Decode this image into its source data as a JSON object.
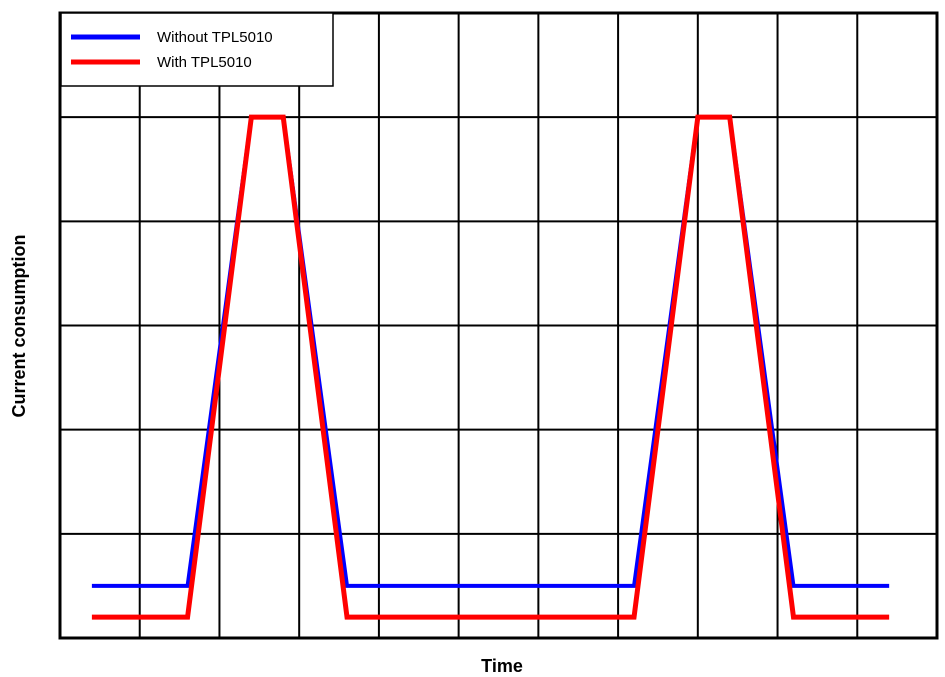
{
  "chart_data": {
    "type": "line",
    "xlabel": "Time",
    "ylabel": "Current consumption",
    "grid": true,
    "legend_placement": "top-left",
    "xlim": [
      0,
      11
    ],
    "ylim": [
      0,
      6
    ],
    "series": [
      {
        "name": "Without TPL5010",
        "color": "#0000ff",
        "x": [
          0.4,
          1.6,
          2.4,
          2.8,
          3.6,
          7.2,
          8.0,
          8.4,
          9.2,
          10.4
        ],
        "y": [
          0.5,
          0.5,
          5.0,
          5.0,
          0.5,
          0.5,
          5.0,
          5.0,
          0.5,
          0.5
        ]
      },
      {
        "name": "With TPL5010",
        "color": "#ff0000",
        "x": [
          0.4,
          1.6,
          2.4,
          2.8,
          3.6,
          7.2,
          8.0,
          8.4,
          9.2,
          10.4
        ],
        "y": [
          0.2,
          0.2,
          5.0,
          5.0,
          0.2,
          0.2,
          5.0,
          5.0,
          0.2,
          0.2
        ]
      }
    ]
  }
}
